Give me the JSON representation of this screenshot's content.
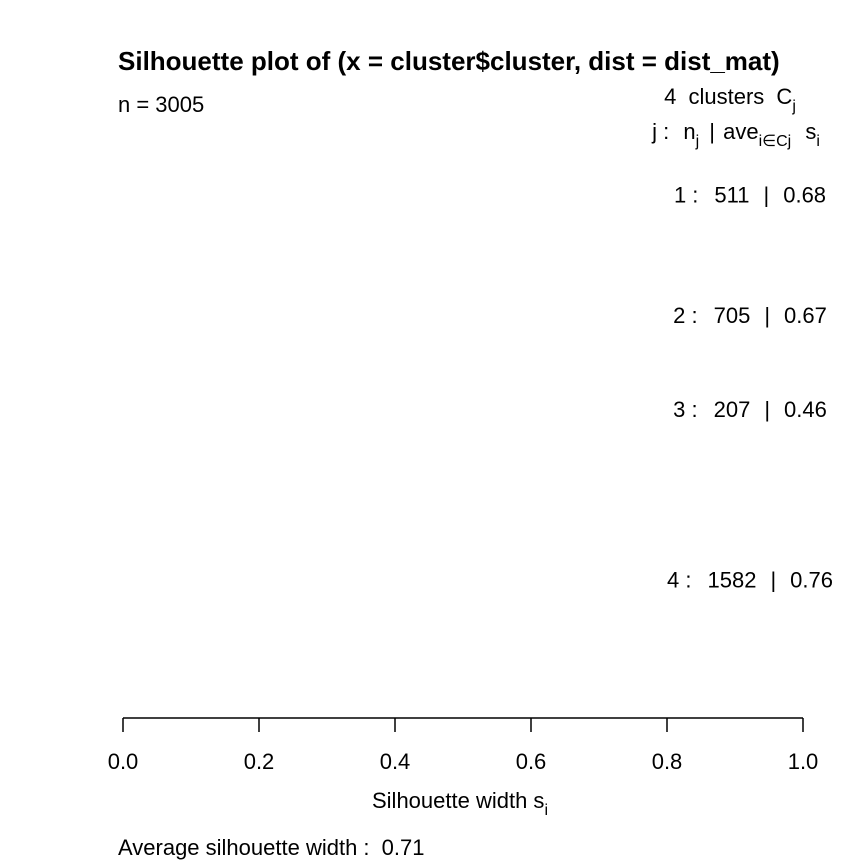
{
  "chart_data": {
    "type": "bar",
    "title": "Silhouette plot of (x = cluster$cluster, dist = dist_mat)",
    "n_label": "n = 3005",
    "header": {
      "k": "4",
      "clusters_word": "clusters",
      "c_main": "C",
      "c_sub": "j",
      "j_label": "j :",
      "n_main": "n",
      "n_sub": "j",
      "sep": "|",
      "ave_main": "ave",
      "ave_sub": "i∈Cj",
      "s_main": "s",
      "s_sub": "i"
    },
    "clusters": [
      {
        "label": "1 :",
        "n": "511",
        "avg": "0.68"
      },
      {
        "label": "2 :",
        "n": "705",
        "avg": "0.67"
      },
      {
        "label": "3 :",
        "n": "207",
        "avg": "0.46"
      },
      {
        "label": "4 :",
        "n": "1582",
        "avg": "0.76"
      }
    ],
    "xlim": [
      0.0,
      1.0
    ],
    "x_ticks": [
      "0.0",
      "0.2",
      "0.4",
      "0.6",
      "0.8",
      "1.0"
    ],
    "xlabel_main": "Silhouette width s",
    "xlabel_sub": "i",
    "footer_label": "Average silhouette width :",
    "footer_value": "0.71"
  }
}
